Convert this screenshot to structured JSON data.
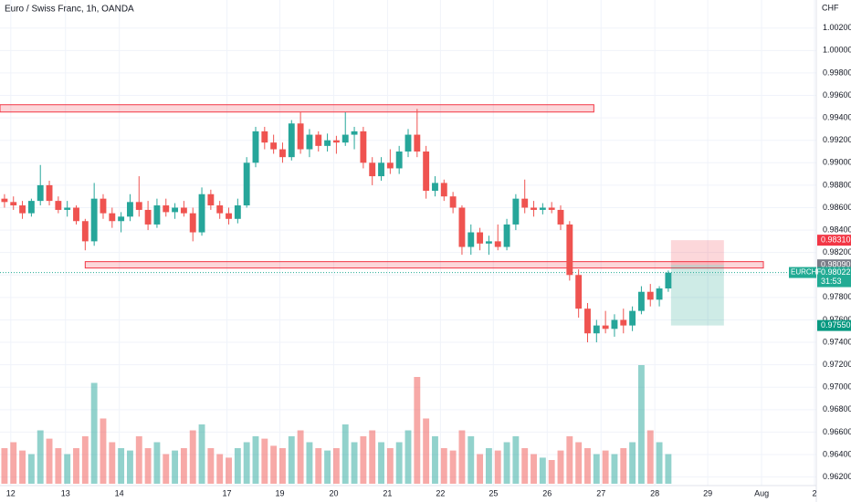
{
  "chart_data": {
    "type": "candlestick",
    "title": "Euro / Swiss Franc, 1h, OANDA",
    "currency": "CHF",
    "up_color": "#26a69a",
    "down_color": "#ef5350",
    "grid": true,
    "xlim": [
      0,
      91
    ],
    "xticks": [
      {
        "value": 1.2,
        "label": "12"
      },
      {
        "value": 7.3,
        "label": "13"
      },
      {
        "value": 13.3,
        "label": "14"
      },
      {
        "value": 25.3,
        "label": "17"
      },
      {
        "value": 31.2,
        "label": "19"
      },
      {
        "value": 37.2,
        "label": "20"
      },
      {
        "value": 43.2,
        "label": "21"
      },
      {
        "value": 49.1,
        "label": "22"
      },
      {
        "value": 55.0,
        "label": "25"
      },
      {
        "value": 61.0,
        "label": "26"
      },
      {
        "value": 67.0,
        "label": "27"
      },
      {
        "value": 73.0,
        "label": "28"
      },
      {
        "value": 78.9,
        "label": "29"
      },
      {
        "value": 84.9,
        "label": "Aug"
      },
      {
        "value": 90.8,
        "label": "2"
      }
    ],
    "ylim": [
      0.9614,
      1.0045
    ],
    "yticks": [
      {
        "value": 1.002,
        "label": "1.00200"
      },
      {
        "value": 1.0,
        "label": "1.00000"
      },
      {
        "value": 0.998,
        "label": "0.99800"
      },
      {
        "value": 0.996,
        "label": "0.99600"
      },
      {
        "value": 0.994,
        "label": "0.99400"
      },
      {
        "value": 0.992,
        "label": "0.99200"
      },
      {
        "value": 0.99,
        "label": "0.99000"
      },
      {
        "value": 0.988,
        "label": "0.98800"
      },
      {
        "value": 0.986,
        "label": "0.98600"
      },
      {
        "value": 0.984,
        "label": "0.98400"
      },
      {
        "value": 0.982,
        "label": "0.98200"
      },
      {
        "value": 0.98,
        "label": "0.98000"
      },
      {
        "value": 0.978,
        "label": "0.97800"
      },
      {
        "value": 0.976,
        "label": "0.97600"
      },
      {
        "value": 0.974,
        "label": "0.97400"
      },
      {
        "value": 0.972,
        "label": "0.97200"
      },
      {
        "value": 0.97,
        "label": "0.97000"
      },
      {
        "value": 0.968,
        "label": "0.96800"
      },
      {
        "value": 0.966,
        "label": "0.96600"
      },
      {
        "value": 0.964,
        "label": "0.96400"
      },
      {
        "value": 0.962,
        "label": "0.96200"
      }
    ],
    "candles": [
      [
        0.9868,
        0.9872,
        0.986,
        0.9865
      ],
      [
        0.9865,
        0.987,
        0.9858,
        0.9862
      ],
      [
        0.9862,
        0.9866,
        0.985,
        0.9855
      ],
      [
        0.9855,
        0.9868,
        0.9852,
        0.9866
      ],
      [
        0.9866,
        0.9898,
        0.9862,
        0.988
      ],
      [
        0.988,
        0.9884,
        0.9862,
        0.9866
      ],
      [
        0.9866,
        0.987,
        0.9855,
        0.9858
      ],
      [
        0.9858,
        0.9866,
        0.9852,
        0.986
      ],
      [
        0.986,
        0.9862,
        0.9845,
        0.9848
      ],
      [
        0.9848,
        0.985,
        0.9822,
        0.983
      ],
      [
        0.983,
        0.9882,
        0.9826,
        0.9868
      ],
      [
        0.9868,
        0.9872,
        0.985,
        0.9855
      ],
      [
        0.9855,
        0.986,
        0.9842,
        0.9848
      ],
      [
        0.9848,
        0.9856,
        0.9838,
        0.9852
      ],
      [
        0.9852,
        0.9872,
        0.9848,
        0.9865
      ],
      [
        0.9865,
        0.9888,
        0.9852,
        0.9858
      ],
      [
        0.9858,
        0.9866,
        0.984,
        0.9845
      ],
      [
        0.9845,
        0.9868,
        0.9842,
        0.9862
      ],
      [
        0.9862,
        0.9868,
        0.9852,
        0.9856
      ],
      [
        0.9856,
        0.9864,
        0.985,
        0.986
      ],
      [
        0.986,
        0.9866,
        0.9852,
        0.9855
      ],
      [
        0.9855,
        0.986,
        0.983,
        0.9838
      ],
      [
        0.9838,
        0.9878,
        0.9835,
        0.9872
      ],
      [
        0.9872,
        0.9876,
        0.9858,
        0.9862
      ],
      [
        0.9862,
        0.9866,
        0.985,
        0.9855
      ],
      [
        0.9855,
        0.986,
        0.9845,
        0.985
      ],
      [
        0.985,
        0.9868,
        0.9846,
        0.9862
      ],
      [
        0.9862,
        0.9905,
        0.986,
        0.99
      ],
      [
        0.99,
        0.9932,
        0.9896,
        0.9928
      ],
      [
        0.9928,
        0.9932,
        0.9912,
        0.9918
      ],
      [
        0.9918,
        0.9925,
        0.9908,
        0.9912
      ],
      [
        0.9912,
        0.9918,
        0.99,
        0.9905
      ],
      [
        0.9905,
        0.9938,
        0.9902,
        0.9935
      ],
      [
        0.9935,
        0.9945,
        0.9908,
        0.9912
      ],
      [
        0.9912,
        0.993,
        0.9905,
        0.9925
      ],
      [
        0.9925,
        0.9928,
        0.991,
        0.9915
      ],
      [
        0.9915,
        0.9926,
        0.991,
        0.992
      ],
      [
        0.992,
        0.9924,
        0.9908,
        0.9918
      ],
      [
        0.9918,
        0.9945,
        0.9915,
        0.9925
      ],
      [
        0.9925,
        0.9932,
        0.9912,
        0.9928
      ],
      [
        0.9928,
        0.9932,
        0.9895,
        0.99
      ],
      [
        0.99,
        0.9905,
        0.988,
        0.9888
      ],
      [
        0.9888,
        0.9905,
        0.9884,
        0.99
      ],
      [
        0.99,
        0.9912,
        0.989,
        0.9895
      ],
      [
        0.9895,
        0.9915,
        0.989,
        0.991
      ],
      [
        0.991,
        0.993,
        0.9905,
        0.9925
      ],
      [
        0.9925,
        0.9948,
        0.9905,
        0.991
      ],
      [
        0.991,
        0.9915,
        0.9868,
        0.9875
      ],
      [
        0.9875,
        0.9888,
        0.987,
        0.9882
      ],
      [
        0.9882,
        0.9885,
        0.9866,
        0.987
      ],
      [
        0.987,
        0.9874,
        0.9855,
        0.986
      ],
      [
        0.986,
        0.9862,
        0.9818,
        0.9825
      ],
      [
        0.9825,
        0.9845,
        0.9818,
        0.9838
      ],
      [
        0.9838,
        0.9842,
        0.9822,
        0.9828
      ],
      [
        0.9828,
        0.9835,
        0.9818,
        0.983
      ],
      [
        0.983,
        0.9845,
        0.9822,
        0.9825
      ],
      [
        0.9825,
        0.985,
        0.9822,
        0.9845
      ],
      [
        0.9845,
        0.9872,
        0.984,
        0.9868
      ],
      [
        0.9868,
        0.9885,
        0.9855,
        0.986
      ],
      [
        0.986,
        0.9866,
        0.9852,
        0.9858
      ],
      [
        0.9858,
        0.9864,
        0.9854,
        0.986
      ],
      [
        0.986,
        0.9865,
        0.9855,
        0.9858
      ],
      [
        0.9858,
        0.9862,
        0.984,
        0.9845
      ],
      [
        0.9845,
        0.9848,
        0.9795,
        0.98
      ],
      [
        0.98,
        0.9805,
        0.9762,
        0.977
      ],
      [
        0.977,
        0.9775,
        0.974,
        0.9748
      ],
      [
        0.9748,
        0.976,
        0.974,
        0.9755
      ],
      [
        0.9755,
        0.9768,
        0.9748,
        0.9752
      ],
      [
        0.9752,
        0.9765,
        0.9745,
        0.976
      ],
      [
        0.976,
        0.977,
        0.9748,
        0.9755
      ],
      [
        0.9755,
        0.9772,
        0.975,
        0.9768
      ],
      [
        0.9768,
        0.979,
        0.9765,
        0.9785
      ],
      [
        0.9785,
        0.9792,
        0.9772,
        0.9778
      ],
      [
        0.9778,
        0.979,
        0.9772,
        0.9788
      ],
      [
        0.9788,
        0.9804,
        0.9785,
        0.9802
      ]
    ],
    "volumes": [
      30,
      35,
      28,
      25,
      45,
      38,
      30,
      25,
      30,
      40,
      85,
      55,
      35,
      30,
      28,
      40,
      30,
      35,
      25,
      28,
      30,
      45,
      50,
      30,
      25,
      22,
      30,
      35,
      40,
      38,
      32,
      30,
      40,
      45,
      35,
      30,
      28,
      30,
      50,
      35,
      40,
      45,
      35,
      30,
      35,
      45,
      90,
      55,
      40,
      30,
      28,
      45,
      40,
      25,
      30,
      28,
      35,
      40,
      30,
      25,
      22,
      20,
      28,
      40,
      35,
      30,
      25,
      28,
      25,
      30,
      35,
      100,
      45,
      35,
      25
    ],
    "zones": [
      {
        "from": 0,
        "to": 66.2,
        "low": 0.99452,
        "high": 0.99517
      },
      {
        "from": 9.5,
        "to": 85.1,
        "low": 0.98062,
        "high": 0.98119
      }
    ],
    "position": {
      "from": 74.8,
      "to": 80.7,
      "stop": 0.9831,
      "entry": 0.9809,
      "target": 0.9755
    },
    "last_price": 0.98022,
    "price_tags": [
      {
        "value": 0.9831,
        "label": "0.98310",
        "color": "#f23645"
      },
      {
        "value": 0.9809,
        "label": "0.98090",
        "color": "#787b86"
      },
      {
        "value": 0.98022,
        "label": "0.98022",
        "symbol": "EURCHF",
        "countdown": "31:53",
        "color": "#22ab94"
      },
      {
        "value": 0.9755,
        "label": "0.97550",
        "color": "#089981"
      }
    ]
  }
}
